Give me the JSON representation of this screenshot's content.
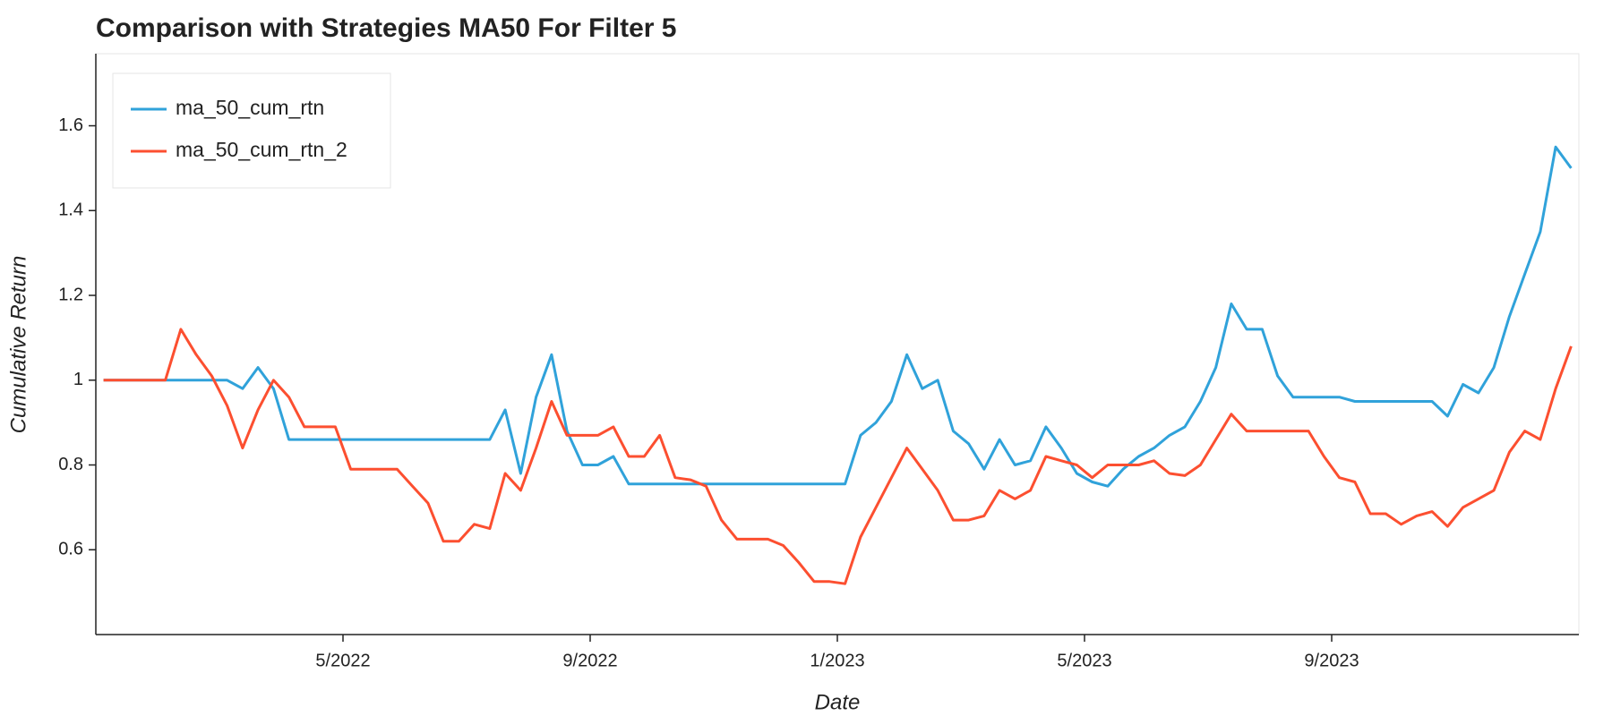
{
  "chart_data": {
    "type": "line",
    "title": "Comparison with Strategies MA50 For Filter 5",
    "x_label": "Date",
    "y_label": "Cumulative Return",
    "x": [
      "2022-01",
      "2022-01",
      "2022-01",
      "2022-01",
      "2022-02",
      "2022-02",
      "2022-02",
      "2022-02",
      "2022-03",
      "2022-03",
      "2022-03",
      "2022-03",
      "2022-04",
      "2022-04",
      "2022-04",
      "2022-04",
      "2022-05",
      "2022-05",
      "2022-05",
      "2022-05",
      "2022-06",
      "2022-06",
      "2022-06",
      "2022-06",
      "2022-07",
      "2022-07",
      "2022-07",
      "2022-07",
      "2022-08",
      "2022-08",
      "2022-08",
      "2022-08",
      "2022-09",
      "2022-09",
      "2022-09",
      "2022-09",
      "2022-10",
      "2022-10",
      "2022-10",
      "2022-10",
      "2022-11",
      "2022-11",
      "2022-11",
      "2022-11",
      "2022-12",
      "2022-12",
      "2022-12",
      "2022-12",
      "2023-01",
      "2023-01",
      "2023-01",
      "2023-01",
      "2023-02",
      "2023-02",
      "2023-02",
      "2023-02",
      "2023-03",
      "2023-03",
      "2023-03",
      "2023-03",
      "2023-04",
      "2023-04",
      "2023-04",
      "2023-04",
      "2023-05",
      "2023-05",
      "2023-05",
      "2023-05",
      "2023-06",
      "2023-06",
      "2023-06",
      "2023-06",
      "2023-07",
      "2023-07",
      "2023-07",
      "2023-07",
      "2023-08",
      "2023-08",
      "2023-08",
      "2023-08",
      "2023-09",
      "2023-09",
      "2023-09",
      "2023-09",
      "2023-10",
      "2023-10",
      "2023-10",
      "2023-10",
      "2023-11",
      "2023-11",
      "2023-11",
      "2023-11",
      "2023-12",
      "2023-12",
      "2023-12",
      "2023-12"
    ],
    "series": [
      {
        "name": "ma_50_cum_rtn",
        "color": "#30a2da",
        "values": [
          1,
          1,
          1,
          1,
          1,
          1,
          1,
          1,
          1,
          0.98,
          1.03,
          0.98,
          0.86,
          0.86,
          0.86,
          0.86,
          0.86,
          0.86,
          0.86,
          0.86,
          0.86,
          0.86,
          0.86,
          0.86,
          0.86,
          0.86,
          0.93,
          0.78,
          0.96,
          1.06,
          0.88,
          0.8,
          0.8,
          0.82,
          0.755,
          0.755,
          0.755,
          0.755,
          0.755,
          0.755,
          0.755,
          0.755,
          0.755,
          0.755,
          0.755,
          0.755,
          0.755,
          0.755,
          0.755,
          0.87,
          0.9,
          0.95,
          1.06,
          0.98,
          1.0,
          0.88,
          0.85,
          0.79,
          0.86,
          0.8,
          0.81,
          0.89,
          0.84,
          0.78,
          0.76,
          0.75,
          0.79,
          0.82,
          0.84,
          0.87,
          0.89,
          0.95,
          1.03,
          1.18,
          1.12,
          1.12,
          1.01,
          0.96,
          0.96,
          0.96,
          0.96,
          0.95,
          0.95,
          0.95,
          0.95,
          0.95,
          0.95,
          0.915,
          0.99,
          0.97,
          1.03,
          1.15,
          1.25,
          1.35,
          1.55,
          1.5
        ]
      },
      {
        "name": "ma_50_cum_rtn_2",
        "color": "#fc4f30",
        "values": [
          1,
          1,
          1,
          1,
          1.0,
          1.12,
          1.06,
          1.01,
          0.94,
          0.84,
          0.93,
          1.0,
          0.96,
          0.89,
          0.89,
          0.89,
          0.79,
          0.79,
          0.79,
          0.79,
          0.75,
          0.71,
          0.62,
          0.62,
          0.66,
          0.65,
          0.78,
          0.74,
          0.84,
          0.95,
          0.87,
          0.87,
          0.87,
          0.89,
          0.82,
          0.82,
          0.87,
          0.77,
          0.765,
          0.75,
          0.67,
          0.625,
          0.625,
          0.625,
          0.61,
          0.57,
          0.525,
          0.525,
          0.52,
          0.63,
          0.7,
          0.77,
          0.84,
          0.79,
          0.74,
          0.67,
          0.67,
          0.68,
          0.74,
          0.72,
          0.74,
          0.82,
          0.81,
          0.8,
          0.77,
          0.8,
          0.8,
          0.8,
          0.81,
          0.78,
          0.775,
          0.8,
          0.86,
          0.92,
          0.88,
          0.88,
          0.88,
          0.88,
          0.88,
          0.82,
          0.77,
          0.76,
          0.685,
          0.685,
          0.66,
          0.68,
          0.69,
          0.655,
          0.7,
          0.72,
          0.74,
          0.83,
          0.88,
          0.86,
          0.98,
          1.08
        ]
      }
    ],
    "xlim": [
      "2022-01",
      "2023-12"
    ],
    "xticks": [
      {
        "value": "2022-05",
        "label": "5/2022"
      },
      {
        "value": "2022-09",
        "label": "9/2022"
      },
      {
        "value": "2023-01",
        "label": "1/2023"
      },
      {
        "value": "2023-05",
        "label": "5/2023"
      },
      {
        "value": "2023-09",
        "label": "9/2023"
      }
    ],
    "ylim": [
      0.4,
      1.77
    ],
    "yticks": [
      0.6,
      0.8,
      1,
      1.2,
      1.4,
      1.6
    ],
    "legend": "top-left",
    "grid": false
  }
}
